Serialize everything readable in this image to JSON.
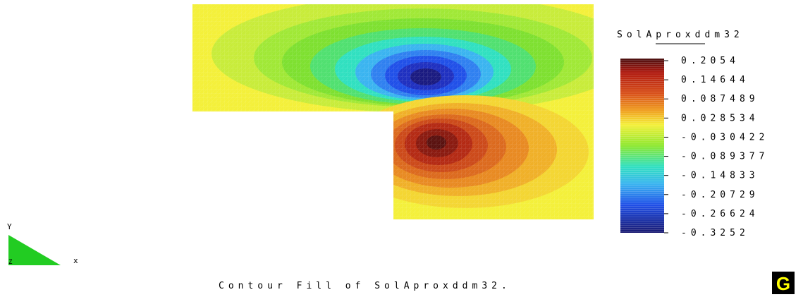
{
  "chart_data": {
    "type": "heatmap",
    "title": "SolAproxddm32",
    "caption": "Contour Fill of SolAproxddm32.",
    "colorbar_ticks": [
      "0.2054",
      "0.14644",
      "0.087489",
      "0.028534",
      "-0.030422",
      "-0.089377",
      "-0.14833",
      "-0.20729",
      "-0.26624",
      "-0.3252"
    ],
    "range": [
      -0.3252,
      0.2054
    ],
    "field": {
      "negative_extremum": {
        "x": 0.6,
        "y": 0.78,
        "value": -0.3252
      },
      "positive_extremum": {
        "x": 0.62,
        "y": 0.22,
        "value": 0.2054
      }
    },
    "axes": {
      "x_label": "x",
      "y_label": "Y",
      "z_label": "Z"
    }
  },
  "logo": {
    "letter": "G"
  },
  "colors": {
    "background": "#ffffff",
    "axis_triangle": "#22cc22",
    "logo_bg": "#000000",
    "logo_letter": "#ffff00"
  }
}
